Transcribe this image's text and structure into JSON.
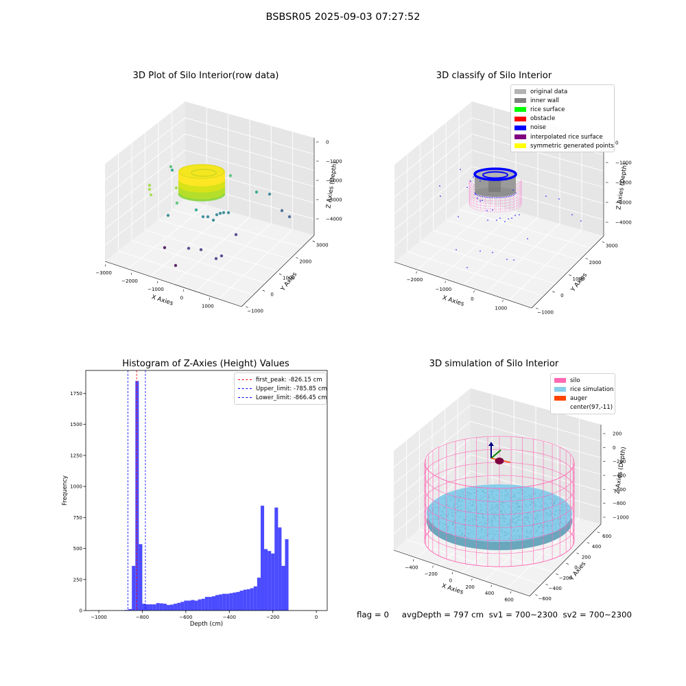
{
  "suptitle": "BSBSR05 2025-09-03 07:27:52",
  "status_line": {
    "flag": "flag = 0",
    "avg_depth": "avgDepth = 797 cm",
    "sv1": "sv1 = 700~2300",
    "sv2": "sv2 = 700~2300"
  },
  "chart_data": [
    {
      "type": "scatter",
      "title": "3D Plot of Silo Interior(row data)",
      "xlabel": "X Axies",
      "ylabel": "Y Axies",
      "zlabel": "Z Axies (Depth)",
      "x_ticks": [
        "−3000",
        "−2000",
        "−1000",
        "0",
        "1000"
      ],
      "y_ticks": [
        "−1000",
        "0",
        "1000",
        "2000",
        "3000"
      ],
      "z_ticks": [
        "0",
        "−1000",
        "−2000",
        "−3000",
        "−4000"
      ],
      "xlim": [
        -3000,
        1800
      ],
      "ylim": [
        -1000,
        3500
      ],
      "zlim": [
        -4700,
        200
      ],
      "colormap": "viridis",
      "cluster": {
        "center_x": 97,
        "center_y": -11,
        "z_top": -786,
        "z_bottom": -866,
        "radius": 700
      }
    },
    {
      "type": "scatter",
      "title": "3D classify of Silo Interior",
      "xlabel": "X Axies",
      "ylabel": "Y Axies",
      "zlabel": "Z Axies (Depth)",
      "x_ticks": [
        "−2000",
        "−1000",
        "0",
        "1000"
      ],
      "y_ticks": [
        "−1000",
        "0",
        "1000",
        "2000",
        "3000"
      ],
      "z_ticks": [
        "0",
        "−1000",
        "−2000",
        "−3000",
        "−4000"
      ],
      "legend_position": "upper right",
      "legend": [
        {
          "label": "original data",
          "color": "#b3b3b3"
        },
        {
          "label": "inner wall",
          "color": "#808080"
        },
        {
          "label": "rice surface",
          "color": "#00ff00"
        },
        {
          "label": "obstacle",
          "color": "#ff0000"
        },
        {
          "label": "noise",
          "color": "#0000ff"
        },
        {
          "label": "interpolated rice surface",
          "color": "#800080"
        },
        {
          "label": "symmetric generated points",
          "color": "#ffff00"
        }
      ]
    },
    {
      "type": "bar",
      "title": "Histogram of Z-Axies (Height) Values",
      "xlabel": "Depth (cm)",
      "ylabel": "Frequency",
      "xlim": [
        -1060,
        50
      ],
      "ylim": [
        0,
        1935
      ],
      "x_ticks": [
        -1000,
        -800,
        -600,
        -400,
        -200,
        0
      ],
      "y_ticks": [
        0,
        250,
        500,
        750,
        1000,
        1250,
        1500,
        1750
      ],
      "bar_color": "#4b4bff",
      "bin_width": 16,
      "bin_left_edges": [
        -1040,
        -1024,
        -1008,
        -992,
        -976,
        -960,
        -944,
        -928,
        -912,
        -896,
        -880,
        -864,
        -848,
        -832,
        -816,
        -800,
        -784,
        -768,
        -752,
        -736,
        -720,
        -704,
        -688,
        -672,
        -656,
        -640,
        -624,
        -608,
        -592,
        -576,
        -560,
        -544,
        -528,
        -512,
        -496,
        -480,
        -464,
        -448,
        -432,
        -416,
        -400,
        -384,
        -368,
        -352,
        -336,
        -320,
        -304,
        -288,
        -272,
        -256,
        -240,
        -224,
        -208,
        -192,
        -176,
        -160,
        -144,
        -128,
        -112,
        -96,
        -80,
        -64,
        -48,
        -32,
        -16
      ],
      "values": [
        1,
        1,
        1,
        1,
        1,
        1,
        1,
        1,
        2,
        3,
        5,
        12,
        360,
        1850,
        535,
        55,
        50,
        50,
        50,
        60,
        58,
        55,
        45,
        48,
        55,
        62,
        70,
        80,
        80,
        85,
        80,
        90,
        95,
        110,
        110,
        115,
        125,
        130,
        135,
        135,
        140,
        145,
        150,
        160,
        168,
        172,
        180,
        195,
        265,
        845,
        495,
        480,
        460,
        830,
        670,
        360,
        575,
        1,
        1,
        1,
        1,
        1,
        1,
        1,
        1
      ],
      "vlines": [
        {
          "label": "first_peak: -826.15 cm",
          "x": -826.15,
          "color": "#ff0000"
        },
        {
          "label": "Upper_limit: -785.85 cm",
          "x": -785.85,
          "color": "#0000ff"
        },
        {
          "label": "Lower_limit: -866.45 cm",
          "x": -866.45,
          "color": "#0000ff"
        }
      ],
      "legend_position": "upper right"
    },
    {
      "type": "scatter",
      "title": "3D simulation of Silo Interior",
      "xlabel": "X Axies",
      "ylabel": "Y Axies",
      "zlabel": "Z Axies (Depth)",
      "x_ticks": [
        "−400",
        "−200",
        "0",
        "200",
        "400",
        "600"
      ],
      "y_ticks": [
        "−600",
        "−400",
        "−200",
        "0",
        "200",
        "400",
        "600"
      ],
      "z_ticks": [
        "200",
        "0",
        "−200",
        "−400",
        "−600",
        "−800",
        "−1000"
      ],
      "legend_position": "upper right",
      "legend": [
        {
          "label": "silo",
          "color": "#ff69b4"
        },
        {
          "label": "rice simulation",
          "color": "#87ceeb"
        },
        {
          "label": "auger",
          "color": "#ff4500"
        },
        {
          "label": "center(97,-11)",
          "color": "#ffffff"
        }
      ]
    }
  ]
}
